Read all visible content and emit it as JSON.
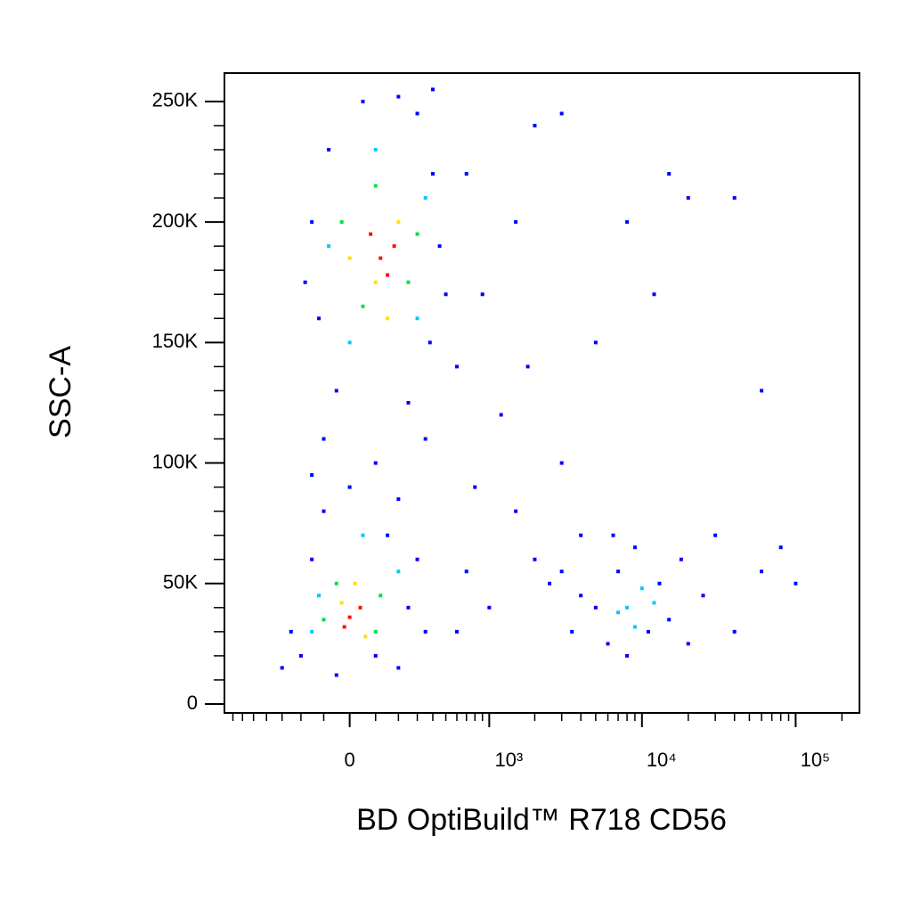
{
  "chart_data": {
    "type": "scatter",
    "x_label": "BD OptiBuild™ R718 CD56",
    "y_label": "SSC-A",
    "x_scale": "biexponential",
    "xlim": [
      -800,
      260000
    ],
    "xticks": [
      0,
      {
        "value": 1000,
        "label": "10³"
      },
      {
        "value": 10000,
        "label": "10⁴"
      },
      {
        "value": 100000,
        "label": "10⁵"
      }
    ],
    "x_minor_ticks": [
      -700,
      -600,
      -500,
      -400,
      -300,
      -200,
      -100,
      100,
      200,
      300,
      400,
      500,
      600,
      700,
      800,
      900,
      2000,
      3000,
      4000,
      5000,
      6000,
      7000,
      8000,
      9000,
      20000,
      30000,
      40000,
      50000,
      60000,
      70000,
      80000,
      90000,
      200000
    ],
    "ylim": [
      -3700,
      261800
    ],
    "yticks": [
      0,
      {
        "value": 50000,
        "label": "50K"
      },
      {
        "value": 100000,
        "label": "100K"
      },
      {
        "value": 150000,
        "label": "150K"
      },
      {
        "value": 200000,
        "label": "200K"
      },
      {
        "value": 250000,
        "label": "250K"
      }
    ],
    "y_minor_ticks": [
      10000,
      20000,
      30000,
      40000,
      60000,
      70000,
      80000,
      90000,
      110000,
      120000,
      130000,
      140000,
      160000,
      170000,
      180000,
      190000,
      210000,
      220000,
      230000,
      240000
    ],
    "series": [
      {
        "color": "#0000ff",
        "x": [
          -150,
          -120,
          -80,
          380,
          400,
          300,
          -50,
          250,
          450,
          -180,
          50,
          200,
          500,
          350,
          -100,
          100,
          600,
          0,
          200,
          -150,
          -250,
          -200,
          -150,
          -100,
          150,
          250,
          300,
          200,
          -50,
          100,
          -300,
          350,
          800,
          1200,
          1500,
          2000,
          700,
          1000,
          3000,
          2500,
          4000,
          1800,
          3500,
          600,
          900,
          5000,
          8000,
          15000,
          20000,
          12000,
          40000,
          60000,
          2000,
          3000,
          400,
          700,
          1500,
          5000,
          6000,
          7000,
          8000,
          9000,
          11000,
          13000,
          15000,
          18000,
          20000,
          25000,
          30000,
          40000,
          60000,
          80000,
          100000,
          4000,
          3000,
          6500
        ],
        "values": [
          200000,
          160000,
          230000,
          150000,
          220000,
          245000,
          130000,
          125000,
          190000,
          175000,
          250000,
          252000,
          170000,
          110000,
          110000,
          100000,
          140000,
          90000,
          85000,
          95000,
          30000,
          20000,
          60000,
          80000,
          70000,
          40000,
          60000,
          15000,
          12000,
          20000,
          15000,
          30000,
          90000,
          120000,
          80000,
          60000,
          55000,
          40000,
          100000,
          50000,
          70000,
          140000,
          30000,
          30000,
          170000,
          150000,
          200000,
          220000,
          210000,
          170000,
          210000,
          130000,
          240000,
          245000,
          255000,
          220000,
          200000,
          40000,
          25000,
          55000,
          20000,
          65000,
          30000,
          50000,
          35000,
          60000,
          25000,
          45000,
          70000,
          30000,
          55000,
          65000,
          50000,
          45000,
          55000,
          70000
        ]
      },
      {
        "color": "#00c8ff",
        "x": [
          0,
          300,
          100,
          -80,
          350,
          -120,
          200,
          50,
          -150,
          8000,
          10000,
          9000,
          12000,
          7000
        ],
        "values": [
          150000,
          160000,
          230000,
          190000,
          210000,
          45000,
          55000,
          70000,
          30000,
          40000,
          48000,
          32000,
          42000,
          38000
        ]
      },
      {
        "color": "#00e040",
        "x": [
          50,
          250,
          100,
          -30,
          300,
          -50,
          100,
          -100,
          120
        ],
        "values": [
          165000,
          175000,
          215000,
          200000,
          195000,
          50000,
          30000,
          35000,
          45000
        ]
      },
      {
        "color": "#ffe000",
        "x": [
          100,
          200,
          0,
          150,
          -30,
          60,
          20
        ],
        "values": [
          175000,
          200000,
          185000,
          160000,
          42000,
          28000,
          50000
        ]
      },
      {
        "color": "#ff1000",
        "x": [
          120,
          180,
          80,
          150,
          0,
          -20,
          40
        ],
        "values": [
          185000,
          190000,
          195000,
          178000,
          36000,
          32000,
          40000
        ]
      }
    ]
  }
}
